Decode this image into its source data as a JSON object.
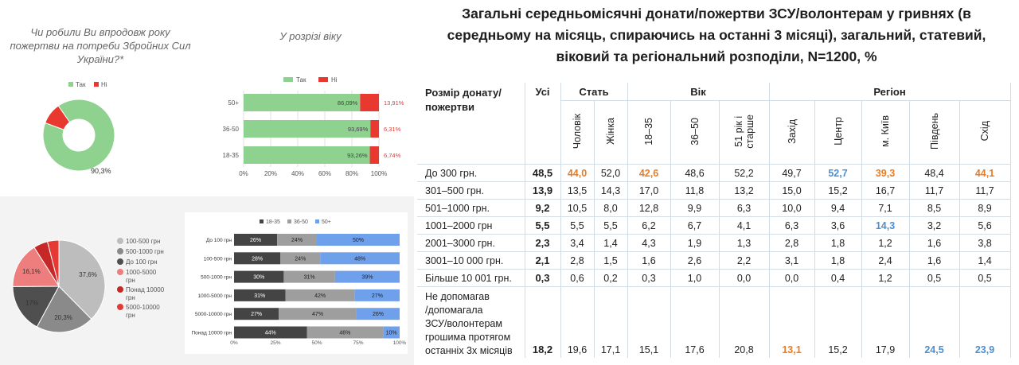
{
  "left_top": {
    "question": "Чи робили Ви впродовж року пожертви на потреби Збройних Сил України?*",
    "by_age_title": "У розрізі віку"
  },
  "colors": {
    "green": "#8fd18f",
    "red": "#e8382f",
    "gray": "#9e9e9e",
    "dark": "#555555",
    "blue": "#6fa0ec",
    "orange": "#e87d25",
    "light_blue": "#4b8fd1"
  },
  "chart_data": [
    {
      "id": "donut",
      "type": "pie",
      "legend": [
        "Так",
        "Ні"
      ],
      "values": [
        90.3,
        9.7
      ],
      "labels": [
        "90,3%",
        ""
      ],
      "colors": [
        "#8fd18f",
        "#e8382f"
      ]
    },
    {
      "id": "age-stacked",
      "type": "bar",
      "orientation": "horizontal",
      "stacked": true,
      "categories": [
        "50+",
        "36-50",
        "18-35"
      ],
      "series": [
        {
          "name": "Так",
          "values": [
            86.09,
            93.69,
            93.26
          ],
          "labels": [
            "86,09%",
            "93,69%",
            "93,26%"
          ],
          "color": "#8fd18f"
        },
        {
          "name": "Ні",
          "values": [
            13.91,
            6.31,
            6.74
          ],
          "labels": [
            "13,91%",
            "6,31%",
            "6,74%"
          ],
          "color": "#e8382f"
        }
      ],
      "xticks": [
        "0%",
        "20%",
        "40%",
        "60%",
        "80%",
        "100%"
      ],
      "xlim": [
        0,
        100
      ]
    },
    {
      "id": "amount-pie",
      "type": "pie",
      "legend": [
        "100-500 грн",
        "500-1000 грн",
        "До 100 грн",
        "1000-5000 грн",
        "Понад 10000 грн",
        "5000-10000 грн"
      ],
      "values": [
        37.6,
        20.3,
        17,
        16.1,
        5,
        4
      ],
      "labels": [
        "37,6%",
        "20,3%",
        "17%",
        "16,1%",
        "",
        ""
      ],
      "colors": [
        "#bdbdbd",
        "#8a8a8a",
        "#4f4f4f",
        "#ee7d7d",
        "#c62828",
        "#e53935"
      ]
    },
    {
      "id": "amount-age",
      "type": "bar",
      "orientation": "horizontal",
      "stacked": true,
      "categories": [
        "До 100 грн",
        "100-500 грн",
        "500-1000 грн",
        "1000-5000 грн",
        "5000-10000 грн",
        "Понад 10000 грн"
      ],
      "series": [
        {
          "name": "18-35",
          "values": [
            26,
            28,
            30,
            31,
            27,
            44
          ],
          "labels": [
            "26%",
            "28%",
            "30%",
            "31%",
            "27%",
            "44%"
          ],
          "color": "#444444"
        },
        {
          "name": "36-50",
          "values": [
            24,
            24,
            31,
            42,
            47,
            46
          ],
          "labels": [
            "24%",
            "24%",
            "31%",
            "42%",
            "47%",
            "46%"
          ],
          "color": "#9e9e9e"
        },
        {
          "name": "50+",
          "values": [
            50,
            48,
            39,
            27,
            26,
            10
          ],
          "labels": [
            "50%",
            "48%",
            "39%",
            "27%",
            "26%",
            "10%"
          ],
          "color": "#6fa0ec"
        }
      ],
      "xticks": [
        "0%",
        "25%",
        "50%",
        "75%",
        "100%"
      ],
      "xlim": [
        0,
        100
      ]
    }
  ],
  "right": {
    "title": "Загальні середньомісячні донати/пожертви ЗСУ/волонтерам у гривнях (в середньому на місяць, спираючись на останні 3 місяці), загальний, статевий, віковий та регіональний розподіли, N=1200, %",
    "h_size": "Розмір донату/пожертви",
    "h_all": "Усі",
    "h_sex": "Стать",
    "h_age": "Вік",
    "h_region": "Регіон",
    "subcols": [
      "Чоловік",
      "Жінка",
      "18–35",
      "36–50",
      "51 рік і\nстарше",
      "Захід",
      "Центр",
      "м. Київ",
      "Південь",
      "Схід"
    ],
    "rows": [
      {
        "label": "До 300 грн.",
        "all": "48,5",
        "vals": [
          "44,0",
          "52,0",
          "42,6",
          "48,6",
          "52,2",
          "49,7",
          "52,7",
          "39,3",
          "48,4",
          "44,1"
        ],
        "hl": [
          "o",
          "",
          "o",
          "",
          "",
          "",
          "b",
          "o",
          "",
          "o"
        ]
      },
      {
        "label": "301–500 грн.",
        "all": "13,9",
        "vals": [
          "13,5",
          "14,3",
          "17,0",
          "11,8",
          "13,2",
          "15,0",
          "15,2",
          "16,7",
          "11,7",
          "11,7"
        ],
        "hl": [
          "",
          "",
          "",
          "",
          "",
          "",
          "",
          "",
          "",
          ""
        ]
      },
      {
        "label": "501–1000 грн.",
        "all": "9,2",
        "vals": [
          "10,5",
          "8,0",
          "12,8",
          "9,9",
          "6,3",
          "10,0",
          "9,4",
          "7,1",
          "8,5",
          "8,9"
        ],
        "hl": [
          "",
          "",
          "",
          "",
          "",
          "",
          "",
          "",
          "",
          ""
        ]
      },
      {
        "label": "1001–2000 грн",
        "all": "5,5",
        "vals": [
          "5,5",
          "5,5",
          "6,2",
          "6,7",
          "4,1",
          "6,3",
          "3,6",
          "14,3",
          "3,2",
          "5,6"
        ],
        "hl": [
          "",
          "",
          "",
          "",
          "",
          "",
          "",
          "b",
          "",
          ""
        ]
      },
      {
        "label": "2001–3000 грн.",
        "all": "2,3",
        "vals": [
          "3,4",
          "1,4",
          "4,3",
          "1,9",
          "1,3",
          "2,8",
          "1,8",
          "1,2",
          "1,6",
          "3,8"
        ],
        "hl": [
          "",
          "",
          "",
          "",
          "",
          "",
          "",
          "",
          "",
          ""
        ]
      },
      {
        "label": "3001–10 000 грн.",
        "all": "2,1",
        "vals": [
          "2,8",
          "1,5",
          "1,6",
          "2,6",
          "2,2",
          "3,1",
          "1,8",
          "2,4",
          "1,6",
          "1,4"
        ],
        "hl": [
          "",
          "",
          "",
          "",
          "",
          "",
          "",
          "",
          "",
          ""
        ]
      },
      {
        "label": "Більше 10 001 грн.",
        "all": "0,3",
        "vals": [
          "0,6",
          "0,2",
          "0,3",
          "1,0",
          "0,0",
          "0,0",
          "0,4",
          "1,2",
          "0,5",
          "0,5"
        ],
        "hl": [
          "",
          "",
          "",
          "",
          "",
          "",
          "",
          "",
          "",
          ""
        ]
      }
    ],
    "last_row": {
      "label_lines": [
        "Не допомагав",
        "/допомагала",
        "ЗСУ/волонтерам",
        "грошима протягом",
        "останніх 3х місяців"
      ],
      "all": "18,2",
      "vals": [
        "19,6",
        "17,1",
        "15,1",
        "17,6",
        "20,8",
        "13,1",
        "15,2",
        "17,9",
        "24,5",
        "23,9"
      ],
      "hl": [
        "",
        "",
        "",
        "",
        "",
        "o",
        "",
        "",
        "b",
        "b"
      ]
    }
  }
}
